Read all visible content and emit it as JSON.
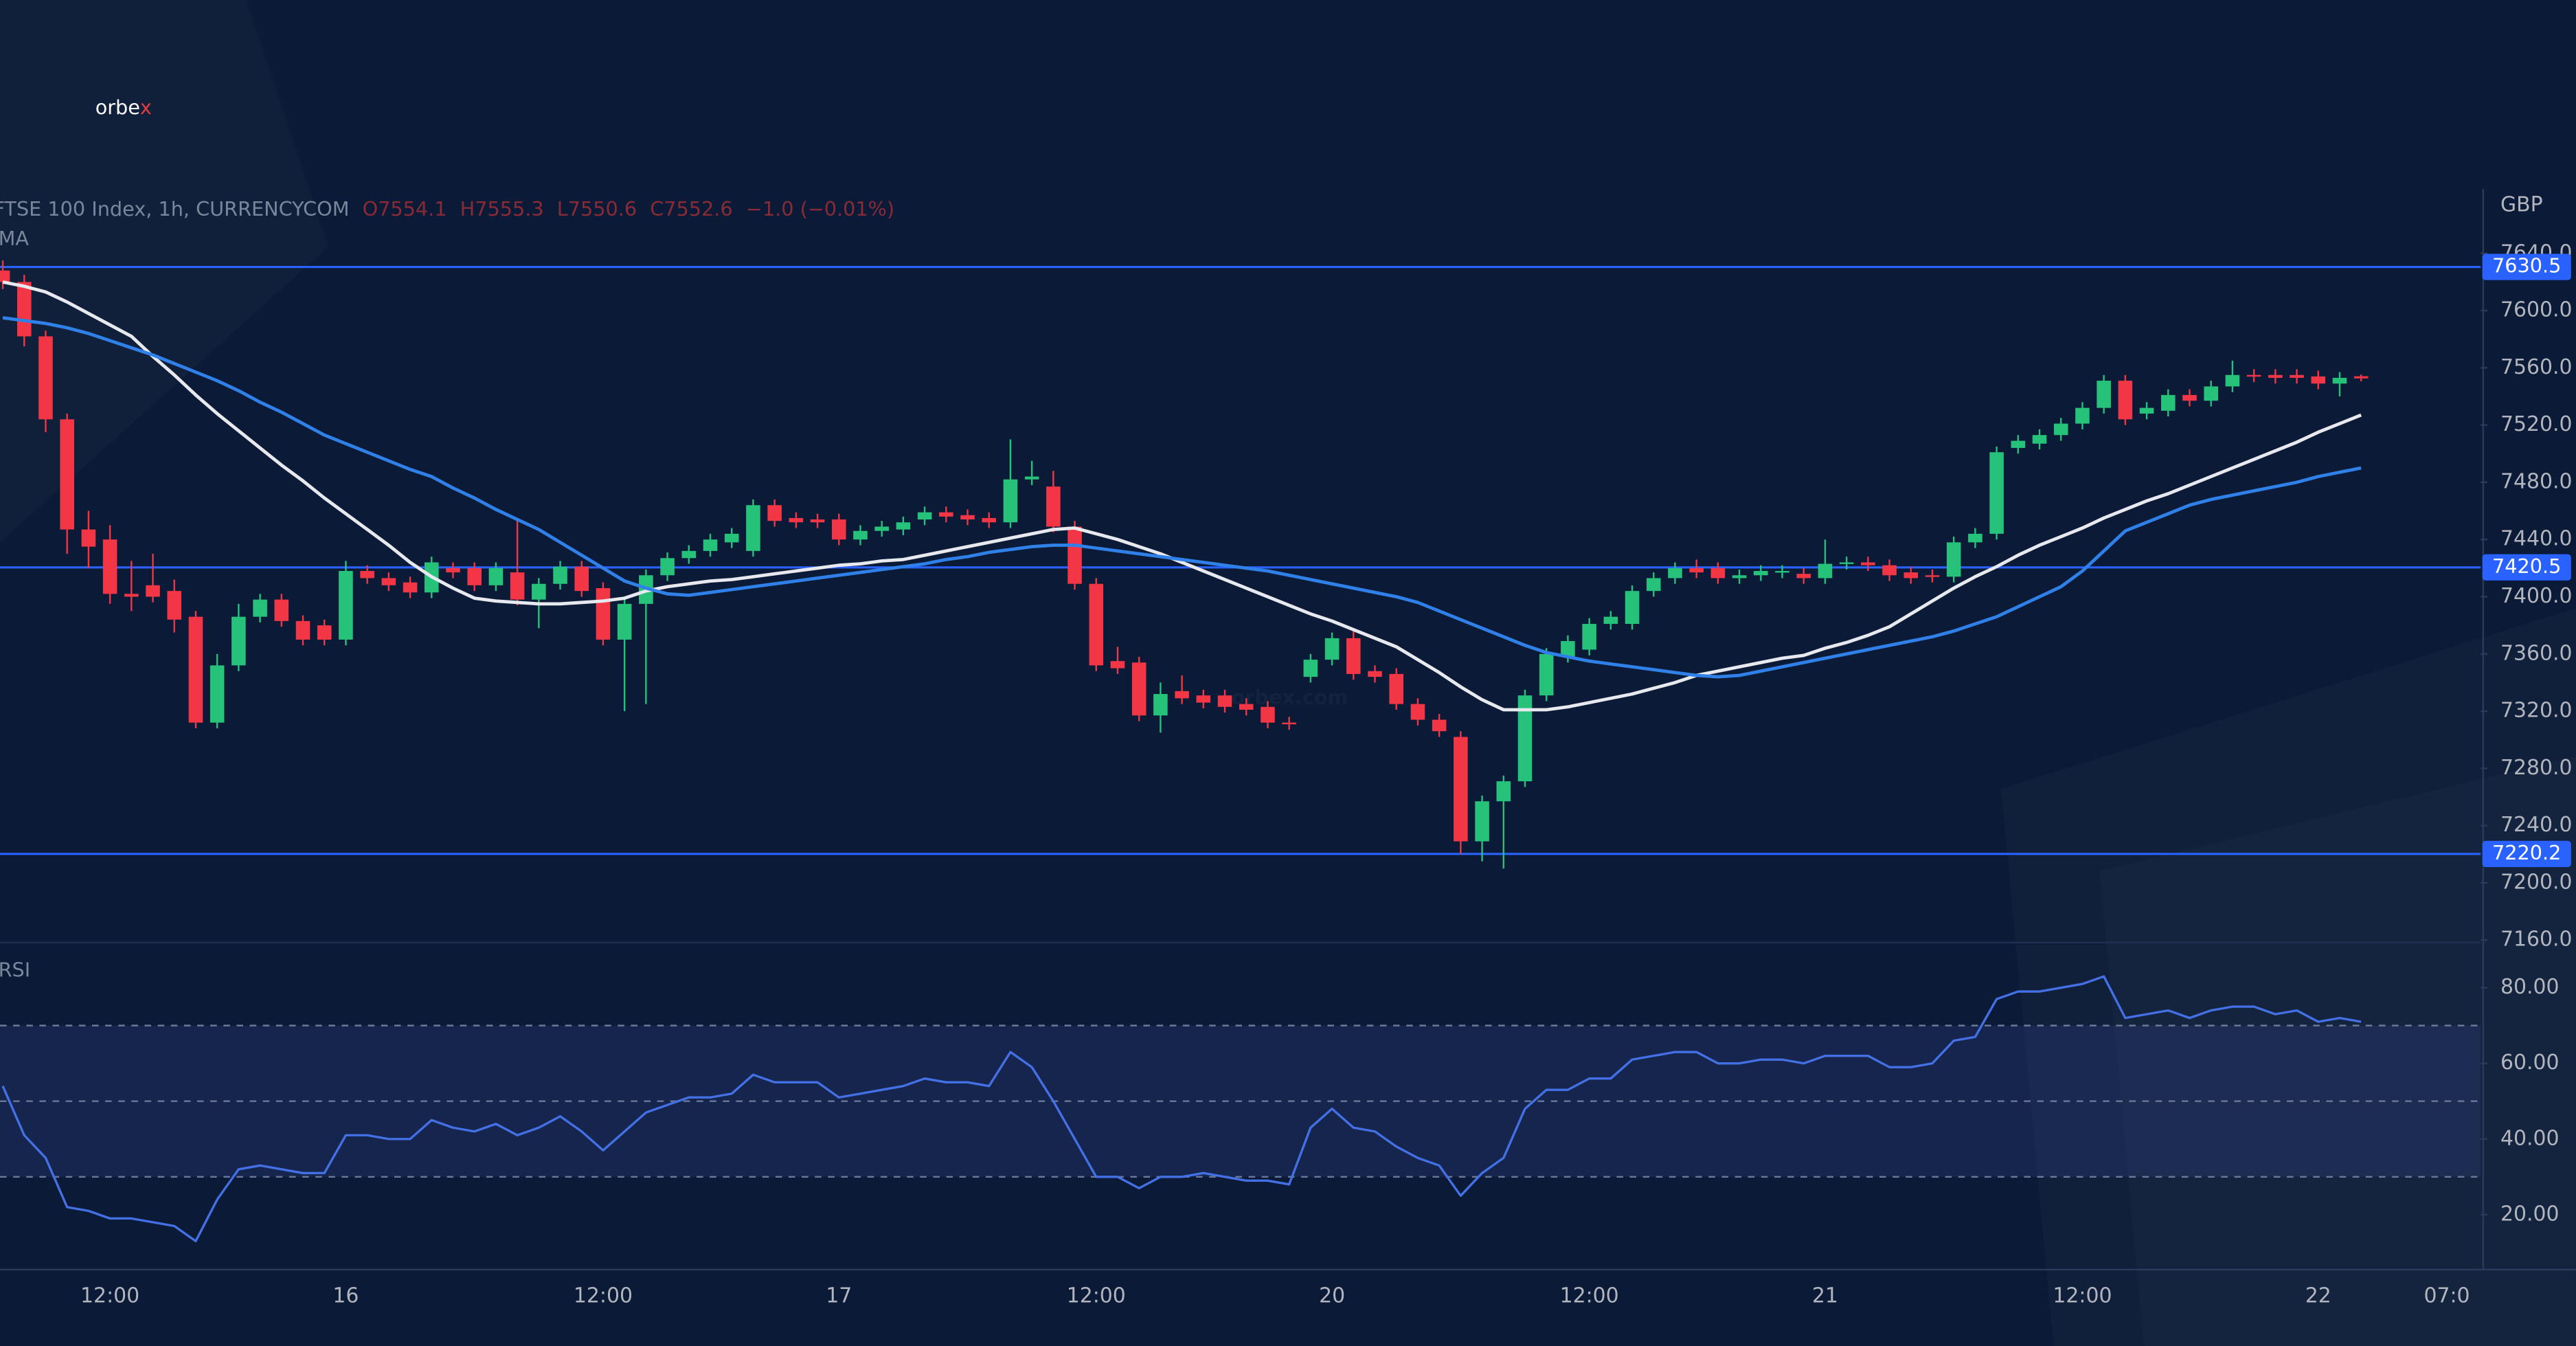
{
  "logo": [
    "orbe",
    "x"
  ],
  "watermark": "orbex.com",
  "header": {
    "symbol": "FTSE 100 Index, 1h, CURRENCYCOM",
    "ohlc": [
      "O7554.1",
      "H7555.3",
      "L7550.6",
      "C7552.6",
      "−1.0 (−0.01%)"
    ],
    "indicator": "MA"
  },
  "chart_data": {
    "type": "candlestick",
    "unit": "GBP",
    "up_color": "#26c27a",
    "down_color": "#f23645",
    "categories": [
      null,
      null,
      null,
      null,
      null,
      "12:00",
      null,
      null,
      null,
      null,
      null,
      null,
      null,
      null,
      null,
      null,
      "16",
      null,
      null,
      null,
      null,
      null,
      null,
      null,
      null,
      null,
      null,
      null,
      "12:00",
      null,
      null,
      null,
      null,
      null,
      null,
      null,
      null,
      null,
      null,
      "17",
      null,
      null,
      null,
      null,
      null,
      null,
      null,
      null,
      null,
      null,
      null,
      "12:00",
      null,
      null,
      null,
      null,
      null,
      null,
      null,
      null,
      null,
      null,
      "20",
      null,
      null,
      null,
      null,
      null,
      null,
      null,
      null,
      null,
      null,
      null,
      "12:00",
      null,
      null,
      null,
      null,
      null,
      null,
      null,
      null,
      null,
      null,
      "21",
      null,
      null,
      null,
      null,
      null,
      null,
      null,
      null,
      null,
      null,
      null,
      "12:00",
      null,
      null,
      null,
      null,
      null,
      null,
      null,
      null,
      null,
      null,
      "22",
      null,
      null,
      null,
      null,
      null,
      "07:0"
    ],
    "open": [
      7628,
      7620,
      7582,
      7524,
      7447,
      7440,
      7402,
      7408,
      7404,
      7386,
      7312,
      7352,
      7386,
      7398,
      7383,
      7380,
      7370,
      7418,
      7413,
      7410,
      7403,
      7420,
      7420,
      7408,
      7417,
      7398,
      7409,
      7421,
      7406,
      7370,
      7395,
      7415,
      7427,
      7432,
      7438,
      7432,
      7464,
      7455,
      7454,
      7454,
      7440,
      7446,
      7447,
      7454,
      7459,
      7457,
      7455,
      7452,
      7482,
      7477,
      7449,
      7409,
      7355,
      7354,
      7317,
      7334,
      7331,
      7331,
      7325,
      7323,
      7312,
      7344,
      7356,
      7371,
      7348,
      7346,
      7325,
      7314,
      7302,
      7229,
      7257,
      7271,
      7331,
      7358,
      7363,
      7381,
      7381,
      7404,
      7413,
      7420,
      7420,
      7413,
      7415,
      7417,
      7416,
      7413,
      7423,
      7424,
      7422,
      7417,
      7415,
      7414,
      7438,
      7444,
      7504,
      7507,
      7513,
      7521,
      7532,
      7551,
      7528,
      7530,
      7541,
      7537,
      7547,
      7555,
      7555,
      7555,
      7554,
      7549,
      7554.1,
      null,
      null,
      null,
      null
    ],
    "high": [
      7635,
      7625,
      7586,
      7528,
      7460,
      7450,
      7425,
      7430,
      7412,
      7390,
      7360,
      7395,
      7402,
      7402,
      7387,
      7384,
      7425,
      7422,
      7417,
      7414,
      7428,
      7424,
      7424,
      7424,
      7454,
      7413,
      7425,
      7425,
      7410,
      7399,
      7419,
      7431,
      7436,
      7444,
      7448,
      7468,
      7468,
      7459,
      7458,
      7458,
      7450,
      7453,
      7456,
      7463,
      7463,
      7461,
      7459,
      7510,
      7495,
      7488,
      7453,
      7413,
      7365,
      7358,
      7340,
      7345,
      7335,
      7335,
      7329,
      7327,
      7316,
      7360,
      7375,
      7378,
      7352,
      7350,
      7329,
      7318,
      7306,
      7261,
      7275,
      7335,
      7364,
      7373,
      7385,
      7390,
      7408,
      7417,
      7424,
      7426,
      7424,
      7419,
      7422,
      7422,
      7420,
      7440,
      7428,
      7428,
      7426,
      7421,
      7419,
      7442,
      7448,
      7505,
      7513,
      7517,
      7525,
      7536,
      7555,
      7555,
      7536,
      7545,
      7545,
      7551,
      7565,
      7559,
      7559,
      7559,
      7558,
      7557,
      7555.3,
      null,
      null,
      null,
      null
    ],
    "low": [
      7615,
      7575,
      7515,
      7430,
      7420,
      7395,
      7390,
      7396,
      7375,
      7308,
      7308,
      7348,
      7382,
      7379,
      7366,
      7366,
      7366,
      7409,
      7404,
      7399,
      7399,
      7413,
      7404,
      7404,
      7394,
      7378,
      7405,
      7400,
      7366,
      7320,
      7325,
      7411,
      7423,
      7428,
      7434,
      7428,
      7449,
      7448,
      7448,
      7436,
      7436,
      7442,
      7443,
      7450,
      7452,
      7450,
      7448,
      7448,
      7478,
      7445,
      7405,
      7348,
      7346,
      7313,
      7305,
      7325,
      7322,
      7319,
      7317,
      7308,
      7307,
      7340,
      7352,
      7342,
      7340,
      7321,
      7310,
      7302,
      7220,
      7215,
      7210,
      7267,
      7327,
      7354,
      7359,
      7377,
      7377,
      7400,
      7409,
      7413,
      7409,
      7409,
      7411,
      7413,
      7409,
      7409,
      7419,
      7418,
      7411,
      7409,
      7410,
      7410,
      7434,
      7440,
      7500,
      7503,
      7509,
      7517,
      7528,
      7520,
      7524,
      7526,
      7533,
      7533,
      7543,
      7550,
      7549,
      7549,
      7545,
      7540,
      7550.6,
      null,
      null,
      null,
      null
    ],
    "close": [
      7620,
      7582,
      7524,
      7447,
      7435,
      7402,
      7400,
      7400,
      7384,
      7312,
      7352,
      7386,
      7398,
      7383,
      7370,
      7370,
      7418,
      7413,
      7408,
      7403,
      7424,
      7417,
      7408,
      7420,
      7398,
      7409,
      7421,
      7404,
      7370,
      7395,
      7415,
      7427,
      7432,
      7440,
      7444,
      7464,
      7453,
      7452,
      7452,
      7440,
      7446,
      7449,
      7452,
      7459,
      7456,
      7454,
      7452,
      7482,
      7484,
      7449,
      7409,
      7352,
      7350,
      7317,
      7332,
      7329,
      7326,
      7323,
      7321,
      7312,
      7311,
      7356,
      7371,
      7346,
      7344,
      7325,
      7314,
      7306,
      7229,
      7257,
      7271,
      7331,
      7360,
      7369,
      7381,
      7386,
      7404,
      7413,
      7420,
      7417,
      7413,
      7415,
      7418,
      7418,
      7413,
      7423,
      7424,
      7422,
      7415,
      7413,
      7414,
      7438,
      7444,
      7501,
      7509,
      7513,
      7521,
      7532,
      7551,
      7524,
      7532,
      7541,
      7537,
      7547,
      7555,
      7554,
      7553,
      7553,
      7549,
      7553,
      7552.6,
      null,
      null,
      null,
      null
    ],
    "series": [
      {
        "color": "#e8e9ee",
        "values": [
          7620,
          7617,
          7613,
          7606,
          7598,
          7590,
          7582,
          7568,
          7555,
          7541,
          7528,
          7516,
          7504,
          7492,
          7481,
          7469,
          7458,
          7447,
          7436,
          7424,
          7414,
          7406,
          7399,
          7397,
          7396,
          7395,
          7395,
          7396,
          7397,
          7399,
          7404,
          7407,
          7409,
          7411,
          7412,
          7414,
          7416,
          7418,
          7420,
          7422,
          7423,
          7425,
          7426,
          7429,
          7432,
          7435,
          7438,
          7441,
          7444,
          7447,
          7448,
          7444,
          7440,
          7435,
          7430,
          7424,
          7418,
          7412,
          7406,
          7400,
          7394,
          7388,
          7383,
          7377,
          7371,
          7365,
          7356,
          7347,
          7337,
          7328,
          7321,
          7321,
          7321,
          7323,
          7326,
          7329,
          7332,
          7336,
          7340,
          7345,
          7348,
          7351,
          7354,
          7357,
          7359,
          7364,
          7368,
          7373,
          7379,
          7388,
          7397,
          7406,
          7414,
          7421,
          7429,
          7436,
          7442,
          7448,
          7455,
          7461,
          7467,
          7472,
          7478,
          7484,
          7490,
          7496,
          7502,
          7508,
          7515,
          7521,
          7527,
          null,
          null,
          null,
          null
        ]
      },
      {
        "color": "#2f80e8",
        "values": [
          7595,
          7593,
          7591,
          7588,
          7584,
          7579,
          7574,
          7569,
          7563,
          7557,
          7551,
          7544,
          7536,
          7529,
          7521,
          7513,
          7507,
          7501,
          7495,
          7489,
          7484,
          7476,
          7469,
          7461,
          7454,
          7447,
          7438,
          7429,
          7420,
          7411,
          7406,
          7402,
          7401,
          7403,
          7405,
          7407,
          7409,
          7411,
          7413,
          7415,
          7417,
          7419,
          7421,
          7423,
          7426,
          7428,
          7431,
          7433,
          7435,
          7436,
          7436,
          7434,
          7432,
          7430,
          7428,
          7426,
          7424,
          7422,
          7420,
          7418,
          7415,
          7412,
          7409,
          7406,
          7403,
          7400,
          7396,
          7390,
          7384,
          7378,
          7372,
          7366,
          7361,
          7358,
          7355,
          7353,
          7351,
          7349,
          7347,
          7345,
          7344,
          7345,
          7348,
          7351,
          7354,
          7357,
          7360,
          7363,
          7366,
          7369,
          7372,
          7376,
          7381,
          7386,
          7393,
          7400,
          7407,
          7418,
          7432,
          7446,
          7452,
          7458,
          7464,
          7468,
          7471,
          7474,
          7477,
          7480,
          7484,
          7487,
          7490,
          null,
          null,
          null,
          null
        ]
      }
    ],
    "hlines": [
      7630.5,
      7420.5,
      7220.2
    ],
    "hline_color": "#2962ff",
    "ylim": [
      7160,
      7685
    ],
    "yticks": [
      {
        "value": 7640,
        "label": "7640.0"
      },
      {
        "value": 7600,
        "label": "7600.0"
      },
      {
        "value": 7560,
        "label": "7560.0"
      },
      {
        "value": 7520,
        "label": "7520.0"
      },
      {
        "value": 7480,
        "label": "7480.0"
      },
      {
        "value": 7440,
        "label": "7440.0"
      },
      {
        "value": 7400,
        "label": "7400.0"
      },
      {
        "value": 7360,
        "label": "7360.0"
      },
      {
        "value": 7320,
        "label": "7320.0"
      },
      {
        "value": 7280,
        "label": "7280.0"
      },
      {
        "value": 7240,
        "label": "7240.0"
      },
      {
        "value": 7200,
        "label": "7200.0"
      },
      {
        "value": 7160,
        "label": "7160.0"
      }
    ],
    "rsi": {
      "title": "RSI",
      "color": "#4470e6",
      "values": [
        54,
        41,
        35,
        22,
        21,
        19,
        19,
        18,
        17,
        13,
        24,
        32,
        33,
        32,
        31,
        31,
        41,
        41,
        40,
        40,
        45,
        43,
        42,
        44,
        41,
        43,
        46,
        42,
        37,
        42,
        47,
        49,
        51,
        51,
        52,
        57,
        55,
        55,
        55,
        51,
        52,
        53,
        54,
        56,
        55,
        55,
        54,
        63,
        59,
        50,
        40,
        30,
        30,
        27,
        30,
        30,
        31,
        30,
        29,
        29,
        28,
        43,
        48,
        43,
        42,
        38,
        35,
        33,
        25,
        31,
        35,
        48,
        53,
        53,
        56,
        56,
        61,
        62,
        63,
        63,
        60,
        60,
        61,
        61,
        60,
        62,
        62,
        62,
        59,
        59,
        60,
        66,
        67,
        77,
        79,
        79,
        80,
        81,
        83,
        72,
        73,
        74,
        72,
        74,
        75,
        75,
        73,
        74,
        71,
        72,
        71,
        null,
        null,
        null,
        null
      ],
      "levels": [
        70,
        50,
        30
      ],
      "ylim": [
        5.7,
        91.3
      ],
      "yticks": [
        {
          "value": 80,
          "label": "80.00"
        },
        {
          "value": 60,
          "label": "60.00"
        },
        {
          "value": 40,
          "label": "40.00"
        },
        {
          "value": 20,
          "label": "20.00"
        }
      ]
    }
  }
}
